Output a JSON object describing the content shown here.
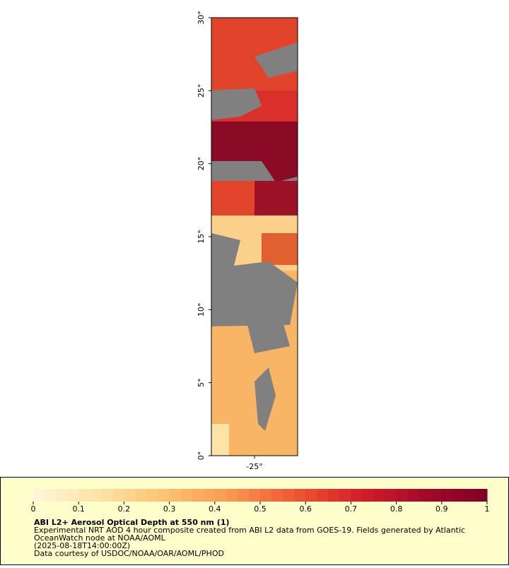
{
  "map": {
    "ylim": [
      0,
      30
    ],
    "yticks": [
      {
        "value": 0,
        "label": "0°"
      },
      {
        "value": 5,
        "label": "5°"
      },
      {
        "value": 10,
        "label": "10°"
      },
      {
        "value": 15,
        "label": "15°"
      },
      {
        "value": 20,
        "label": "20°"
      },
      {
        "value": 25,
        "label": "25°"
      },
      {
        "value": 30,
        "label": "30°"
      }
    ],
    "xlim": [
      -28,
      -22
    ],
    "xticks": [
      {
        "value": -25,
        "label": "-25°"
      }
    ]
  },
  "colorbar": {
    "range": [
      0,
      1
    ],
    "ticks": [
      0,
      0.1,
      0.2,
      0.3,
      0.4,
      0.5,
      0.6,
      0.7,
      0.8,
      0.9,
      1
    ],
    "colormap": [
      "#fff6dc",
      "#fde3a6",
      "#fcc472",
      "#f99a52",
      "#ef5a33",
      "#d6202a",
      "#a50a2a",
      "#7d0025"
    ]
  },
  "legend": {
    "title": "ABI L2+ Aerosol Optical Depth at 550 nm (1)",
    "lines": [
      "Experimental NRT AOD 4 hour composite created from ABI L2 data from GOES-19. Fields generated by Atlantic",
      "OceanWatch node at NOAA/AOML",
      "(2025-08-18T14:00:00Z)",
      "Data courtesy of USDOC/NOAA/OAR/AOML/PHOD"
    ]
  }
}
